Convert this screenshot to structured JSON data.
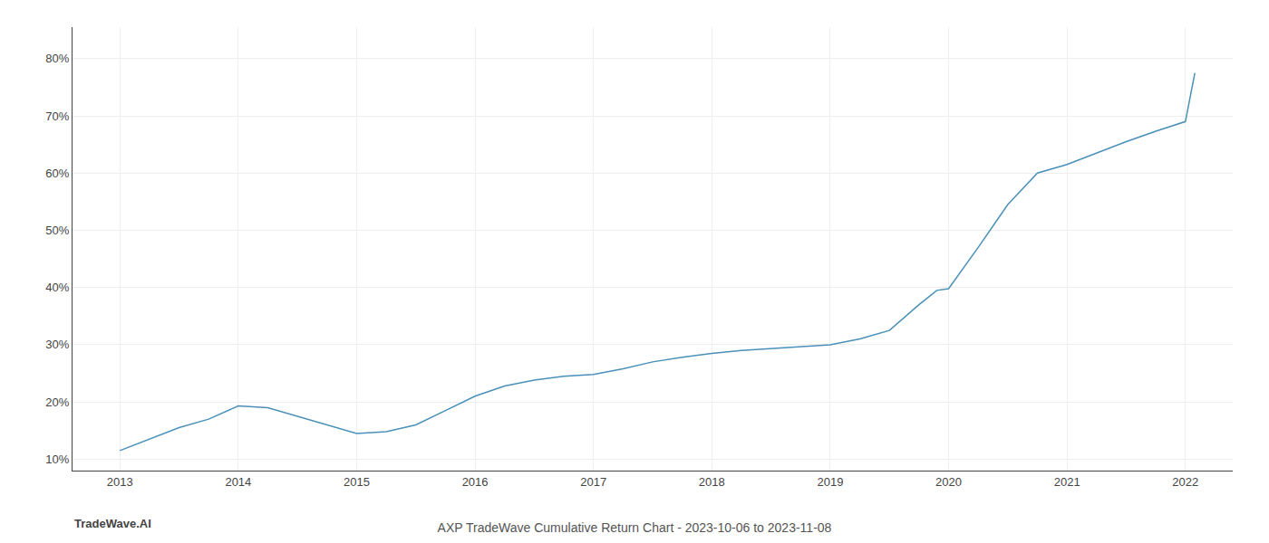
{
  "chart_data": {
    "type": "line",
    "title": "AXP TradeWave Cumulative Return Chart - 2023-10-06 to 2023-11-08",
    "annotations": [
      "TradeWave.AI"
    ],
    "x": [
      2013.0,
      2013.25,
      2013.5,
      2013.75,
      2014.0,
      2014.25,
      2014.75,
      2015.0,
      2015.25,
      2015.5,
      2015.75,
      2016.0,
      2016.25,
      2016.5,
      2016.75,
      2017.0,
      2017.25,
      2017.5,
      2017.75,
      2018.0,
      2018.25,
      2018.5,
      2018.75,
      2019.0,
      2019.25,
      2019.5,
      2019.75,
      2019.9,
      2020.0,
      2020.25,
      2020.5,
      2020.75,
      2021.0,
      2021.25,
      2021.5,
      2021.75,
      2022.0,
      2022.08
    ],
    "values": [
      0.115,
      0.135,
      0.155,
      0.17,
      0.193,
      0.19,
      0.16,
      0.145,
      0.148,
      0.16,
      0.185,
      0.21,
      0.228,
      0.238,
      0.245,
      0.248,
      0.258,
      0.27,
      0.278,
      0.285,
      0.29,
      0.293,
      0.296,
      0.3,
      0.31,
      0.325,
      0.37,
      0.395,
      0.398,
      0.47,
      0.545,
      0.6,
      0.615,
      0.635,
      0.655,
      0.673,
      0.69,
      0.775
    ],
    "color": "#4a90b8",
    "xlim": [
      2012.6,
      2022.4
    ],
    "xticks": [
      2013,
      2014,
      2015,
      2016,
      2017,
      2018,
      2019,
      2020,
      2021,
      2022
    ],
    "ylim": [
      0.08,
      0.855
    ],
    "yticks": [
      {
        "value": 0.1,
        "label": "10%"
      },
      {
        "value": 0.2,
        "label": "20%"
      },
      {
        "value": 0.3,
        "label": "30%"
      },
      {
        "value": 0.4,
        "label": "40%"
      },
      {
        "value": 0.5,
        "label": "50%"
      },
      {
        "value": 0.6,
        "label": "60%"
      },
      {
        "value": 0.7,
        "label": "70%"
      },
      {
        "value": 0.8,
        "label": "80%"
      }
    ],
    "grid": true
  }
}
